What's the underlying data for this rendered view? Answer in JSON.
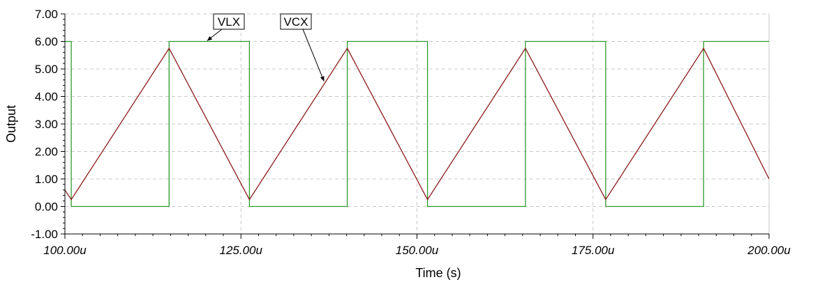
{
  "chart_data": {
    "type": "line",
    "xlabel": "Time (s)",
    "ylabel": "Output",
    "xlim": [
      100,
      200
    ],
    "ylim": [
      -1,
      7
    ],
    "x_unit": "us",
    "x_ticks": [
      100,
      125,
      150,
      175,
      200
    ],
    "x_tick_labels": [
      "100.00u",
      "125.00u",
      "150.00u",
      "175.00u",
      "200.00u"
    ],
    "y_ticks": [
      -1,
      0,
      1,
      2,
      3,
      4,
      5,
      6,
      7
    ],
    "y_tick_labels": [
      "-1.00",
      "0.00",
      "1.00",
      "2.00",
      "3.00",
      "4.00",
      "5.00",
      "6.00",
      "7.00"
    ],
    "grid": true,
    "series": [
      {
        "name": "VLX",
        "color": "#2e9a2e",
        "x": [
          100,
          100.9,
          100.9,
          114.8,
          114.8,
          126.2,
          126.2,
          140.1,
          140.1,
          151.5,
          151.5,
          165.4,
          165.4,
          176.8,
          176.8,
          190.7,
          190.7,
          200
        ],
        "y": [
          6,
          6,
          0,
          0,
          6,
          6,
          0,
          0,
          6,
          6,
          0,
          0,
          6,
          6,
          0,
          0,
          6,
          6
        ]
      },
      {
        "name": "VCX",
        "color": "#8b1a1a",
        "x": [
          100,
          100.9,
          114.8,
          126.2,
          140.1,
          151.5,
          165.4,
          176.8,
          190.7,
          200
        ],
        "y": [
          0.6,
          0.25,
          5.75,
          0.25,
          5.75,
          0.25,
          5.75,
          0.25,
          5.75,
          1.0
        ]
      }
    ],
    "callouts": [
      {
        "series": "VLX",
        "label": "VLX"
      },
      {
        "series": "VCX",
        "label": "VCX"
      }
    ]
  }
}
